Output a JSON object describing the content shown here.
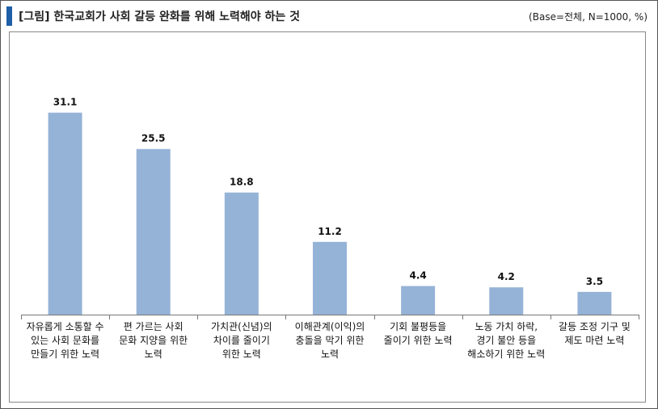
{
  "header": {
    "title": "[그림] 한국교회가 사회 갈등 완화를 위해 노력해야 하는 것",
    "note": "(Base=전체, N=1000, %)",
    "accent_color": "#1F5FA8"
  },
  "chart_data": {
    "type": "bar",
    "categories": [
      [
        "자유롭게 소통할 수",
        "있는 사회 문화를",
        "만들기 위한 노력"
      ],
      [
        "편 가르는 사회",
        "문화 지양을 위한",
        "노력"
      ],
      [
        "가치관(신념)의",
        "차이를 줄이기",
        "위한 노력"
      ],
      [
        "이해관계(이익)의",
        "충돌을 막기 위한",
        "노력"
      ],
      [
        "기회 불평등을",
        "줄이기 위한 노력"
      ],
      [
        "노동 가치 하락,",
        "경기 불안 등을",
        "해소하기 위한 노력"
      ],
      [
        "갈등 조정 기구 및",
        "제도 마련 노력"
      ]
    ],
    "values": [
      31.1,
      25.5,
      18.8,
      11.2,
      4.4,
      4.2,
      3.5
    ],
    "value_labels": [
      "31.1",
      "25.5",
      "18.8",
      "11.2",
      "4.4",
      "4.2",
      "3.5"
    ],
    "ylim": [
      0,
      40
    ],
    "bar_color": "#95B3D7",
    "grid": false,
    "legend": "none"
  }
}
